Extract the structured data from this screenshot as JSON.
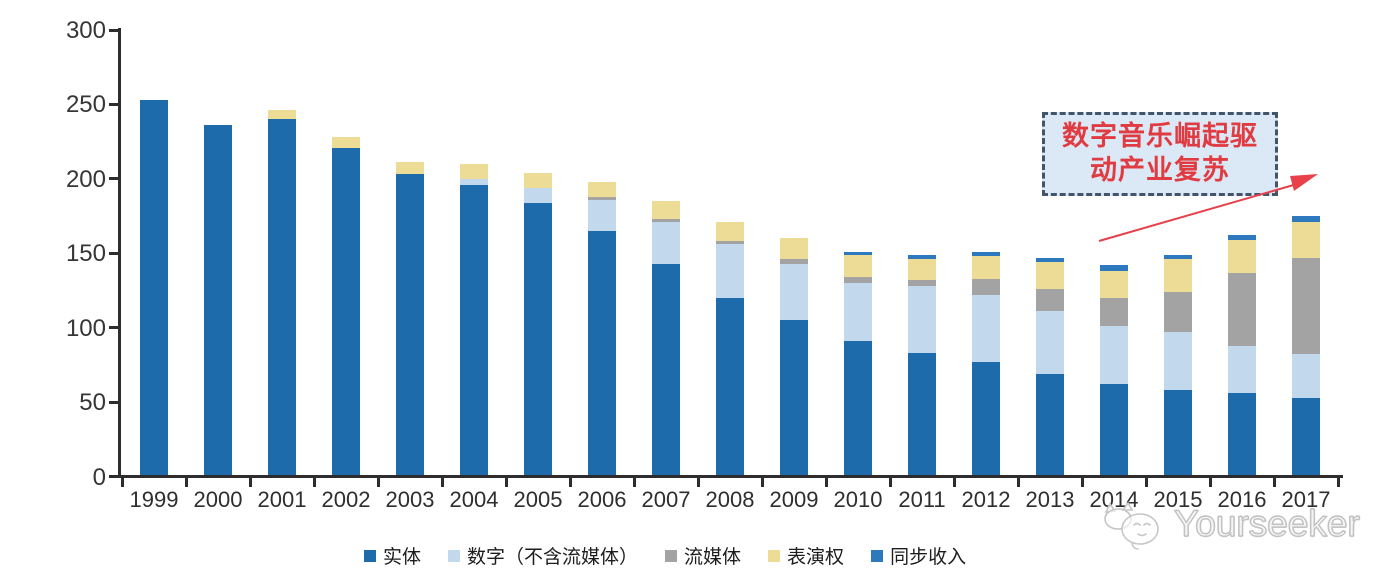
{
  "chart_data": {
    "type": "bar",
    "stacked": true,
    "title": "",
    "xlabel": "",
    "ylabel": "",
    "ylim": [
      0,
      300
    ],
    "y_tick_step": 50,
    "grid": false,
    "legend_position": "bottom",
    "categories": [
      "1999",
      "2000",
      "2001",
      "2002",
      "2003",
      "2004",
      "2005",
      "2006",
      "2007",
      "2008",
      "2009",
      "2010",
      "2011",
      "2012",
      "2013",
      "2014",
      "2015",
      "2016",
      "2017"
    ],
    "series": [
      {
        "name": "实体",
        "color": "#1E6BAB",
        "values": [
          252,
          235,
          239,
          220,
          202,
          195,
          183,
          164,
          142,
          119,
          104,
          90,
          82,
          76,
          68,
          61,
          57,
          55,
          52
        ]
      },
      {
        "name": "数字（不含流媒体）",
        "color": "#C2D8ED",
        "values": [
          0,
          0,
          0,
          0,
          0,
          4,
          10,
          21,
          28,
          36,
          38,
          39,
          45,
          45,
          42,
          39,
          39,
          32,
          29
        ]
      },
      {
        "name": "流媒体",
        "color": "#A3A3A3",
        "values": [
          0,
          0,
          0,
          0,
          0,
          0,
          0,
          2,
          2,
          2,
          3,
          4,
          4,
          11,
          15,
          19,
          27,
          49,
          65
        ]
      },
      {
        "name": "表演权",
        "color": "#EDDC96",
        "values": [
          0,
          0,
          6,
          7,
          8,
          10,
          10,
          10,
          12,
          13,
          14,
          15,
          14,
          15,
          18,
          18,
          22,
          22,
          24
        ]
      },
      {
        "name": "同步收入",
        "color": "#2E79BE",
        "values": [
          0,
          0,
          0,
          0,
          0,
          0,
          0,
          0,
          0,
          0,
          0,
          2,
          3,
          3,
          3,
          4,
          3,
          3,
          4
        ]
      }
    ]
  },
  "y_axis": {
    "labels": [
      "300",
      "250",
      "200",
      "150",
      "100",
      "50",
      "0"
    ]
  },
  "legend": {
    "items": [
      {
        "label": "实体",
        "color": "#1E6BAB"
      },
      {
        "label": "数字（不含流媒体）",
        "color": "#C2D8ED"
      },
      {
        "label": "流媒体",
        "color": "#A3A3A3"
      },
      {
        "label": "表演权",
        "color": "#EDDC96"
      },
      {
        "label": "同步收入",
        "color": "#2E79BE"
      }
    ]
  },
  "annotation": {
    "line1": "数字音乐崛起驱",
    "line2": "动产业复苏",
    "box_fill": "#DBE8F6",
    "border_color": "#44546A",
    "text_color": "#E13B42",
    "arrow_color": "#E8414B"
  },
  "watermark": {
    "text": "Yourseeker",
    "logo": "cat-doodle-icon",
    "color": "#C4C4C4"
  }
}
